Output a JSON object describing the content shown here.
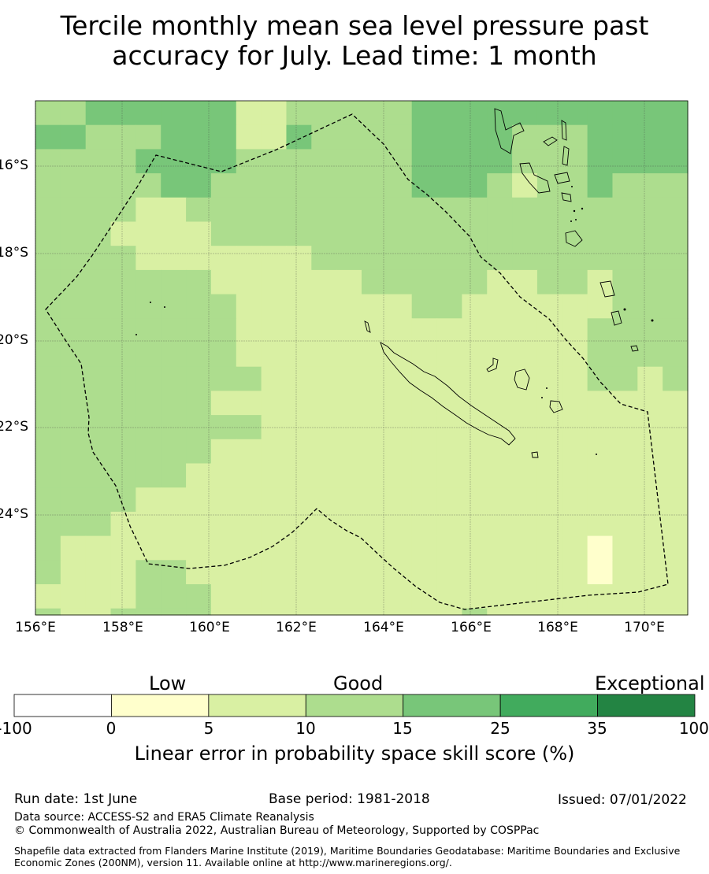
{
  "title_line1": "Tercile monthly mean sea level pressure past",
  "title_line2": "accuracy for July. Lead time: 1 month",
  "map": {
    "lon_ticks": [
      "156°E",
      "158°E",
      "160°E",
      "162°E",
      "164°E",
      "166°E",
      "168°E",
      "170°E"
    ],
    "lat_ticks": [
      "16°S",
      "18°S",
      "20°S",
      "22°S",
      "24°S"
    ],
    "grid_legend": {
      "0": "#ffffcc",
      "1": "#d9f0a3",
      "2": "#addd8e",
      "3": "#78c679"
    },
    "grid_rows": [
      "22333333112222233333333333",
      "33222333113222233332223333",
      "22223333222222233332223333",
      "22222332222222233321223222",
      "22221122222222222222222222",
      "22211112222222222222222222",
      "22221111111222222222222222",
      "22222221111112222211221222",
      "22222222111111122111111222",
      "22222222111111111111112222",
      "22222222111111111111112222",
      "22222222211111111111112212",
      "22222221111111111111111111",
      "22222222211111111111111111",
      "22222221111111111111111111",
      "22222211111111111111111111",
      "22221111111111111111111111",
      "22211111111111111111111111",
      "21111111111111111111110111",
      "21112211111111111111110111",
      "11112221111111111111111111",
      "21122221111111111211111111",
      "11211111112111111111111111"
    ]
  },
  "colorbar": {
    "categories": [
      "Low",
      "Good",
      "Exceptional"
    ],
    "ticks": [
      "-100",
      "0",
      "5",
      "10",
      "15",
      "25",
      "35",
      "100"
    ],
    "colors": [
      "#ffffff",
      "#ffffcc",
      "#d9f0a3",
      "#addd8e",
      "#78c679",
      "#41ab5d",
      "#238443"
    ],
    "label": "Linear error in probability space skill score (%)"
  },
  "footer": {
    "run_date": "Run date: 1st June",
    "base_period": "Base period: 1981-2018",
    "issued": "Issued: 07/01/2022",
    "data_source": "Data source: ACCESS-S2 and ERA5 Climate Reanalysis",
    "copyright": "© Commonwealth of Australia 2022, Australian Bureau of Meteorology, Supported by COSPPac",
    "shapefile": "Shapefile data extracted from Flanders Marine Institute (2019), Maritime Boundaries Geodatabase: Maritime Boundaries and Exclusive Economic Zones (200NM), version 11. Available online at http://www.marineregions.org/."
  }
}
